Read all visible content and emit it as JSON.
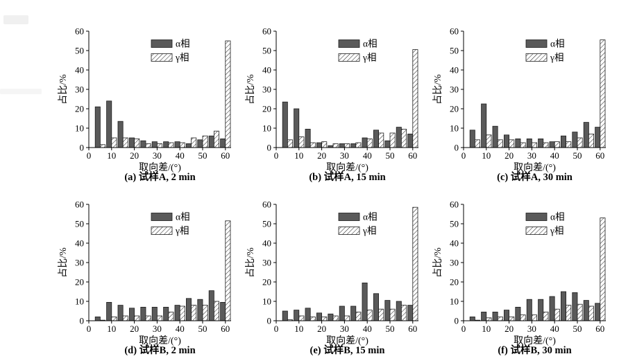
{
  "figure": {
    "background_color": "#ffffff",
    "alpha_bar_color": "#5a5a5a",
    "bar_outline_color": "#1c1c1c",
    "hatch_line_color": "#2b2b2b",
    "axis_color": "#000000"
  },
  "chart_data": [
    {
      "type": "bar",
      "caption": "(a) 试样A, 2 min",
      "xlabel": "取向差/(°)",
      "ylabel": "占比/%",
      "xlim": [
        0,
        62.5
      ],
      "ylim": [
        0,
        60
      ],
      "xticks": [
        0,
        10,
        20,
        30,
        40,
        50,
        60
      ],
      "yticks": [
        0,
        10,
        20,
        30,
        40,
        50,
        60
      ],
      "bin_width_deg": 5,
      "bar_width_deg": 2.2,
      "grid": "off",
      "legend_position": "upper-center",
      "categories": [
        5,
        10,
        15,
        20,
        25,
        30,
        35,
        40,
        45,
        50,
        55,
        60
      ],
      "series": [
        {
          "name": "α相",
          "style": "solid",
          "color": "#5a5a5a",
          "values": [
            21,
            24,
            13.5,
            5,
            3.5,
            3,
            3,
            3,
            2,
            4,
            6,
            4.5
          ]
        },
        {
          "name": "γ相",
          "style": "hatch",
          "color": "#ffffff",
          "hatch_color": "#2b2b2b",
          "values": [
            1.5,
            5,
            5,
            4.5,
            2,
            2,
            2.5,
            2.5,
            5,
            6,
            8.5,
            55
          ]
        }
      ]
    },
    {
      "type": "bar",
      "caption": "(b) 试样A, 15 min",
      "xlabel": "取向差/(°)",
      "ylabel": "占比/%",
      "xlim": [
        0,
        62.5
      ],
      "ylim": [
        0,
        60
      ],
      "xticks": [
        0,
        10,
        20,
        30,
        40,
        50,
        60
      ],
      "yticks": [
        0,
        10,
        20,
        30,
        40,
        50,
        60
      ],
      "bin_width_deg": 5,
      "bar_width_deg": 2.2,
      "grid": "off",
      "legend_position": "upper-center",
      "categories": [
        5,
        10,
        15,
        20,
        25,
        30,
        35,
        40,
        45,
        50,
        55,
        60
      ],
      "series": [
        {
          "name": "α相",
          "style": "solid",
          "color": "#5a5a5a",
          "values": [
            23.5,
            20,
            9.5,
            2.5,
            1,
            2,
            2,
            5,
            9,
            3.5,
            10.5,
            7
          ]
        },
        {
          "name": "γ相",
          "style": "hatch",
          "color": "#ffffff",
          "hatch_color": "#2b2b2b",
          "values": [
            4,
            5.5,
            2.5,
            3,
            2,
            2,
            2.5,
            4.5,
            7.5,
            7.5,
            9.5,
            50.5
          ]
        }
      ]
    },
    {
      "type": "bar",
      "caption": "(c) 试样A, 30 min",
      "xlabel": "取向差/(°)",
      "ylabel": "占比/%",
      "xlim": [
        0,
        62.5
      ],
      "ylim": [
        0,
        60
      ],
      "xticks": [
        0,
        10,
        20,
        30,
        40,
        50,
        60
      ],
      "yticks": [
        0,
        10,
        20,
        30,
        40,
        50,
        60
      ],
      "bin_width_deg": 5,
      "bar_width_deg": 2.2,
      "grid": "off",
      "legend_position": "upper-center",
      "categories": [
        5,
        10,
        15,
        20,
        25,
        30,
        35,
        40,
        45,
        50,
        55,
        60
      ],
      "series": [
        {
          "name": "α相",
          "style": "solid",
          "color": "#5a5a5a",
          "values": [
            9,
            22.5,
            11,
            6.5,
            4.5,
            4.5,
            4.5,
            3,
            6,
            8,
            13,
            10.5
          ]
        },
        {
          "name": "γ相",
          "style": "hatch",
          "color": "#ffffff",
          "hatch_color": "#2b2b2b",
          "values": [
            4,
            6.5,
            4,
            4,
            2.5,
            2.5,
            2.5,
            3,
            3,
            5,
            7,
            55.5
          ]
        }
      ]
    },
    {
      "type": "bar",
      "caption": "(d) 试样B, 2 min",
      "xlabel": "取向差/(°)",
      "ylabel": "占比/%",
      "xlim": [
        0,
        62.5
      ],
      "ylim": [
        0,
        60
      ],
      "xticks": [
        0,
        10,
        20,
        30,
        40,
        50,
        60
      ],
      "yticks": [
        0,
        10,
        20,
        30,
        40,
        50,
        60
      ],
      "bin_width_deg": 5,
      "bar_width_deg": 2.2,
      "grid": "off",
      "legend_position": "upper-center",
      "categories": [
        5,
        10,
        15,
        20,
        25,
        30,
        35,
        40,
        45,
        50,
        55,
        60
      ],
      "series": [
        {
          "name": "α相",
          "style": "solid",
          "color": "#5a5a5a",
          "values": [
            2,
            9.5,
            8,
            6.5,
            7,
            7,
            7,
            8,
            11.5,
            11,
            15.5,
            9.5
          ]
        },
        {
          "name": "γ相",
          "style": "hatch",
          "color": "#ffffff",
          "hatch_color": "#2b2b2b",
          "values": [
            0.3,
            2,
            2.5,
            2.5,
            2.5,
            2.5,
            4.5,
            7.5,
            8,
            8,
            10,
            51.5
          ]
        }
      ]
    },
    {
      "type": "bar",
      "caption": "(e) 试样B, 15 min",
      "xlabel": "取向差/(°)",
      "ylabel": "占比/%",
      "xlim": [
        0,
        62.5
      ],
      "ylim": [
        0,
        60
      ],
      "xticks": [
        0,
        10,
        20,
        30,
        40,
        50,
        60
      ],
      "yticks": [
        0,
        10,
        20,
        30,
        40,
        50,
        60
      ],
      "bin_width_deg": 5,
      "bar_width_deg": 2.2,
      "grid": "off",
      "legend_position": "upper-center",
      "categories": [
        5,
        10,
        15,
        20,
        25,
        30,
        35,
        40,
        45,
        50,
        55,
        60
      ],
      "series": [
        {
          "name": "α相",
          "style": "solid",
          "color": "#5a5a5a",
          "values": [
            5,
            5.5,
            6.5,
            4,
            3.5,
            7.5,
            7.5,
            19.5,
            14,
            10.5,
            10,
            8
          ]
        },
        {
          "name": "γ相",
          "style": "hatch",
          "color": "#ffffff",
          "hatch_color": "#2b2b2b",
          "values": [
            0.5,
            2.5,
            2,
            2,
            2.5,
            2.5,
            4.5,
            5.5,
            6,
            6,
            8,
            58.5
          ]
        }
      ]
    },
    {
      "type": "bar",
      "caption": "(f) 试样B, 30 min",
      "xlabel": "取向差/(°)",
      "ylabel": "占比/%",
      "xlim": [
        0,
        62.5
      ],
      "ylim": [
        0,
        60
      ],
      "xticks": [
        0,
        10,
        20,
        30,
        40,
        50,
        60
      ],
      "yticks": [
        0,
        10,
        20,
        30,
        40,
        50,
        60
      ],
      "bin_width_deg": 5,
      "bar_width_deg": 2.2,
      "grid": "off",
      "legend_position": "upper-center",
      "categories": [
        5,
        10,
        15,
        20,
        25,
        30,
        35,
        40,
        45,
        50,
        55,
        60
      ],
      "series": [
        {
          "name": "α相",
          "style": "solid",
          "color": "#5a5a5a",
          "values": [
            2,
            4.5,
            4.5,
            5.5,
            7,
            11,
            11,
            12.5,
            15,
            14.5,
            10.5,
            9
          ]
        },
        {
          "name": "γ相",
          "style": "hatch",
          "color": "#ffffff",
          "hatch_color": "#2b2b2b",
          "values": [
            0.3,
            1.5,
            2,
            2,
            3,
            3,
            4.5,
            6,
            8,
            8.5,
            7.5,
            53
          ]
        }
      ]
    }
  ]
}
